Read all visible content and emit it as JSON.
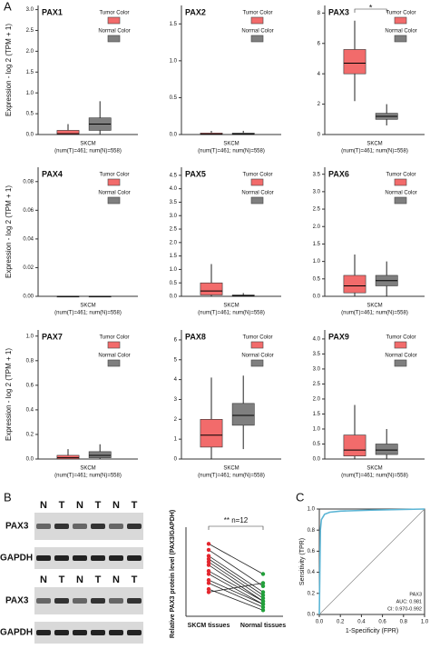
{
  "panels": [
    "A",
    "B",
    "C"
  ],
  "chart_data": [
    {
      "type": "box",
      "title": "PAX1",
      "ylabel": "Expression - log 2 (TPM + 1)",
      "xlabel": "SKCM",
      "note": "(num(T)=461; num(N)=558)",
      "ylim": [
        0,
        3.1
      ],
      "yticks": [
        {
          "value": 0,
          "label": "0.0"
        },
        0.5,
        {
          "value": 1,
          "label": "1.0"
        },
        1.5,
        {
          "value": 2,
          "label": "2.0"
        },
        2.5,
        {
          "value": 3,
          "label": "3.0"
        }
      ],
      "series": [
        {
          "name": "Tumor Color",
          "color": "#f26b6b",
          "min": 0,
          "q1": 0,
          "median": 0.02,
          "q3": 0.1,
          "max": 0.25
        },
        {
          "name": "Normal Color",
          "color": "#7f7f7f",
          "min": 0,
          "q1": 0.1,
          "median": 0.25,
          "q3": 0.4,
          "max": 0.8
        }
      ]
    },
    {
      "type": "box",
      "title": "PAX2",
      "xlabel": "SKCM",
      "note": "(num(T)=461; num(N)=558)",
      "ylim": [
        0,
        1.75
      ],
      "yticks": [
        {
          "value": 0,
          "label": "0.0"
        },
        0.5,
        {
          "value": 1,
          "label": "1.0"
        },
        1.5
      ],
      "series": [
        {
          "name": "Tumor Color",
          "color": "#f26b6b",
          "min": 0,
          "q1": 0,
          "median": 0.005,
          "q3": 0.02,
          "max": 0.05
        },
        {
          "name": "Normal Color",
          "color": "#7f7f7f",
          "min": 0,
          "q1": 0,
          "median": 0.005,
          "q3": 0.02,
          "max": 0.05
        }
      ]
    },
    {
      "type": "box",
      "title": "PAX3",
      "annotation": "*",
      "xlabel": "SKCM",
      "note": "(num(T)=461; num(N)=558)",
      "ylim": [
        0,
        8.5
      ],
      "yticks": [
        0,
        2,
        4,
        6,
        8
      ],
      "series": [
        {
          "name": "Tumor Color",
          "color": "#f26b6b",
          "min": 2.2,
          "q1": 4,
          "median": 4.7,
          "q3": 5.6,
          "max": 7.5
        },
        {
          "name": "Normal Color",
          "color": "#7f7f7f",
          "min": 0.6,
          "q1": 1,
          "median": 1.2,
          "q3": 1.4,
          "max": 2
        }
      ]
    },
    {
      "type": "box",
      "title": "PAX4",
      "ylabel": "Expression - log 2 (TPM + 1)",
      "xlabel": "SKCM",
      "note": "(num(T)=461; num(N)=558)",
      "ylim": [
        0,
        0.09
      ],
      "yticks": [
        {
          "value": 0,
          "label": "0.00"
        },
        0.02,
        0.04,
        0.06,
        0.08
      ],
      "series": [
        {
          "name": "Tumor Color",
          "color": "#f26b6b",
          "min": 0,
          "q1": 0,
          "median": 0,
          "q3": 0,
          "max": 0
        },
        {
          "name": "Normal Color",
          "color": "#7f7f7f",
          "min": 0,
          "q1": 0,
          "median": 0,
          "q3": 0,
          "max": 0
        }
      ]
    },
    {
      "type": "box",
      "title": "PAX5",
      "xlabel": "SKCM",
      "note": "(num(T)=461; num(N)=558)",
      "ylim": [
        0,
        4.8
      ],
      "yticks": [
        {
          "value": 0,
          "label": "0.0"
        },
        0.5,
        {
          "value": 1,
          "label": "1.0"
        },
        1.5,
        {
          "value": 2,
          "label": "2.0"
        },
        2.5,
        {
          "value": 3,
          "label": "3.0"
        },
        3.5,
        {
          "value": 4,
          "label": "4.0"
        },
        4.5
      ],
      "series": [
        {
          "name": "Tumor Color",
          "color": "#f26b6b",
          "min": 0,
          "q1": 0.05,
          "median": 0.2,
          "q3": 0.5,
          "max": 1.2
        },
        {
          "name": "Normal Color",
          "color": "#7f7f7f",
          "min": 0,
          "q1": 0,
          "median": 0.02,
          "q3": 0.05,
          "max": 0.12
        }
      ]
    },
    {
      "type": "box",
      "title": "PAX6",
      "xlabel": "SKCM",
      "note": "(num(T)=461; num(N)=558)",
      "ylim": [
        0,
        3.7
      ],
      "yticks": [
        {
          "value": 0,
          "label": "0.0"
        },
        0.5,
        {
          "value": 1,
          "label": "1.0"
        },
        1.5,
        {
          "value": 2,
          "label": "2.0"
        },
        2.5,
        {
          "value": 3,
          "label": "3.0"
        },
        3.5
      ],
      "series": [
        {
          "name": "Tumor Color",
          "color": "#f26b6b",
          "min": 0,
          "q1": 0.1,
          "median": 0.3,
          "q3": 0.6,
          "max": 1.2
        },
        {
          "name": "Normal Color",
          "color": "#7f7f7f",
          "min": 0,
          "q1": 0.3,
          "median": 0.45,
          "q3": 0.6,
          "max": 1
        }
      ]
    },
    {
      "type": "box",
      "title": "PAX7",
      "ylabel": "Expression - log 2 (TPM + 1)",
      "xlabel": "SKCM",
      "note": "(num(T)=461; num(N)=558)",
      "ylim": [
        0,
        1.05
      ],
      "yticks": [
        {
          "value": 0,
          "label": "0.0"
        },
        0.2,
        0.4,
        0.6,
        0.8,
        {
          "value": 1,
          "label": "1.0"
        }
      ],
      "series": [
        {
          "name": "Tumor Color",
          "color": "#f26b6b",
          "min": 0,
          "q1": 0,
          "median": 0.01,
          "q3": 0.03,
          "max": 0.08
        },
        {
          "name": "Normal Color",
          "color": "#7f7f7f",
          "min": 0,
          "q1": 0.01,
          "median": 0.03,
          "q3": 0.06,
          "max": 0.12
        }
      ]
    },
    {
      "type": "box",
      "title": "PAX8",
      "xlabel": "SKCM",
      "note": "(num(T)=461; num(N)=558)",
      "ylim": [
        0,
        6.5
      ],
      "yticks": [
        0,
        1,
        2,
        3,
        4,
        5,
        6
      ],
      "series": [
        {
          "name": "Tumor Color",
          "color": "#f26b6b",
          "min": 0,
          "q1": 0.6,
          "median": 1.2,
          "q3": 2,
          "max": 4.1
        },
        {
          "name": "Normal Color",
          "color": "#7f7f7f",
          "min": 0.5,
          "q1": 1.7,
          "median": 2.2,
          "q3": 2.8,
          "max": 4.2
        }
      ]
    },
    {
      "type": "box",
      "title": "PAX9",
      "xlabel": "SKCM",
      "note": "(num(T)=461; num(N)=558)",
      "ylim": [
        0,
        4.3
      ],
      "yticks": [
        {
          "value": 0,
          "label": "0.0"
        },
        0.5,
        {
          "value": 1,
          "label": "1.0"
        },
        1.5,
        {
          "value": 2,
          "label": "2.0"
        },
        2.5,
        {
          "value": 3,
          "label": "3.0"
        },
        3.5,
        {
          "value": 4,
          "label": "4.0"
        }
      ],
      "series": [
        {
          "name": "Tumor Color",
          "color": "#f26b6b",
          "min": 0,
          "q1": 0.1,
          "median": 0.3,
          "q3": 0.8,
          "max": 1.8
        },
        {
          "name": "Normal Color",
          "color": "#7f7f7f",
          "min": 0,
          "q1": 0.15,
          "median": 0.3,
          "q3": 0.5,
          "max": 1
        }
      ]
    },
    {
      "type": "paired",
      "ylabel": "Relative PAX3 protein level (PAX3/GAPDH)",
      "annotation": "** n=12",
      "categories": [
        "SKCM tissues",
        "Normal tissues"
      ],
      "colors": [
        "#e3262e",
        "#22a03a"
      ],
      "ylim": [
        0,
        1.4
      ],
      "pairs": [
        [
          1.2,
          0.7
        ],
        [
          1.1,
          0.5
        ],
        [
          1,
          0.4
        ],
        [
          0.95,
          0.35
        ],
        [
          0.9,
          0.3
        ],
        [
          0.85,
          0.25
        ],
        [
          0.75,
          0.25
        ],
        [
          0.7,
          0.2
        ],
        [
          0.6,
          0.2
        ],
        [
          0.55,
          0.15
        ],
        [
          0.45,
          0.1
        ],
        [
          0.4,
          0.55
        ]
      ]
    },
    {
      "type": "roc",
      "xlabel": "1-Specificity (FPR)",
      "ylabel": "Sensitivity (TPR)",
      "color": "#5bb5d5",
      "annotations": [
        "PAX3",
        "AUC: 0.981",
        "CI: 0.970-0.992"
      ],
      "xlim": [
        0,
        1
      ],
      "ylim": [
        0,
        1
      ],
      "xticks": [
        {
          "value": 0,
          "label": "0.0"
        },
        0.2,
        0.4,
        0.6,
        0.8,
        {
          "value": 1,
          "label": "1.0"
        }
      ],
      "yticks": [
        {
          "value": 0,
          "label": "0.0"
        },
        0.2,
        0.4,
        0.6,
        0.8,
        {
          "value": 1,
          "label": "1.0"
        }
      ],
      "x": [
        0,
        0.01,
        0.02,
        0.05,
        0.1,
        0.2,
        0.5,
        1
      ],
      "values": [
        0,
        0.8,
        0.9,
        0.95,
        0.97,
        0.98,
        0.99,
        1
      ]
    }
  ],
  "blots": [
    {
      "lanes": [
        "N",
        "T",
        "N",
        "T",
        "N",
        "T"
      ],
      "rows": [
        "PAX3",
        "GAPDH"
      ]
    },
    {
      "lanes": [
        "N",
        "T",
        "N",
        "T",
        "N",
        "T"
      ],
      "rows": [
        "PAX3",
        "GAPDH"
      ]
    }
  ]
}
